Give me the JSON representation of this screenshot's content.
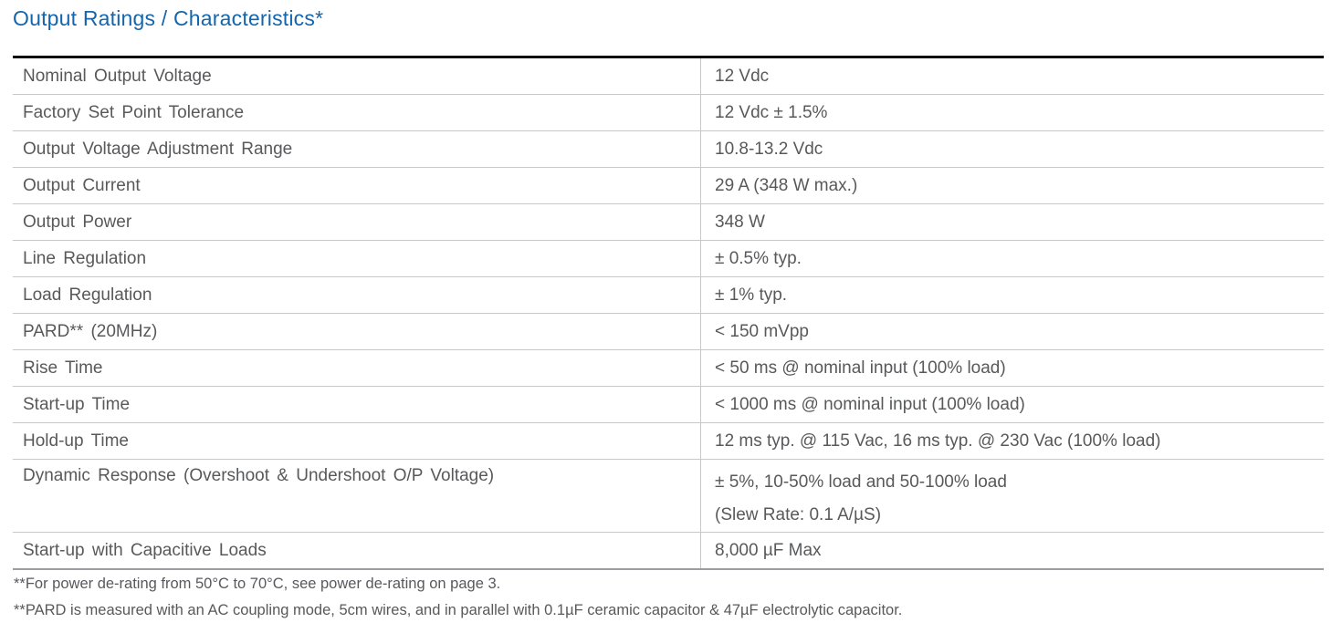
{
  "title": "Output Ratings / Characteristics*",
  "colors": {
    "title_blue": "#1565ad",
    "body_text": "#58595b",
    "row_divider": "#c7c8ca",
    "table_top_border": "#0d0d0d",
    "table_bottom_border": "#9b9da0"
  },
  "table": {
    "rows": [
      {
        "label": "Nominal Output Voltage",
        "value": "12 Vdc"
      },
      {
        "label": "Factory Set Point Tolerance",
        "value": "12 Vdc ± 1.5%"
      },
      {
        "label": "Output Voltage Adjustment Range",
        "value": "10.8-13.2 Vdc"
      },
      {
        "label": "Output Current",
        "value": "29 A (348 W max.)"
      },
      {
        "label": "Output Power",
        "value": "348 W"
      },
      {
        "label": "Line Regulation",
        "value": "± 0.5% typ."
      },
      {
        "label": "Load Regulation",
        "value": "± 1% typ."
      },
      {
        "label": "PARD** (20MHz)",
        "value": "< 150 mVpp"
      },
      {
        "label": "Rise Time",
        "value": "< 50 ms @ nominal input (100% load)"
      },
      {
        "label": "Start-up Time",
        "value": "< 1000 ms @ nominal input (100% load)"
      },
      {
        "label": "Hold-up Time",
        "value": "12 ms typ. @ 115 Vac, 16 ms typ. @ 230 Vac (100% load)"
      },
      {
        "label": "Dynamic Response (Overshoot & Undershoot O/P Voltage)",
        "value": "± 5%, 10-50% load and 50-100% load",
        "value_line2": "(Slew Rate: 0.1 A/µS)"
      },
      {
        "label": "Start-up with Capacitive Loads",
        "value": "8,000 µF Max"
      }
    ]
  },
  "footnotes": [
    "**For power de-rating from 50°C to 70°C, see power de-rating on page 3.",
    "**PARD is measured with an AC coupling mode, 5cm wires, and in parallel with 0.1µF ceramic capacitor & 47µF electrolytic capacitor."
  ]
}
